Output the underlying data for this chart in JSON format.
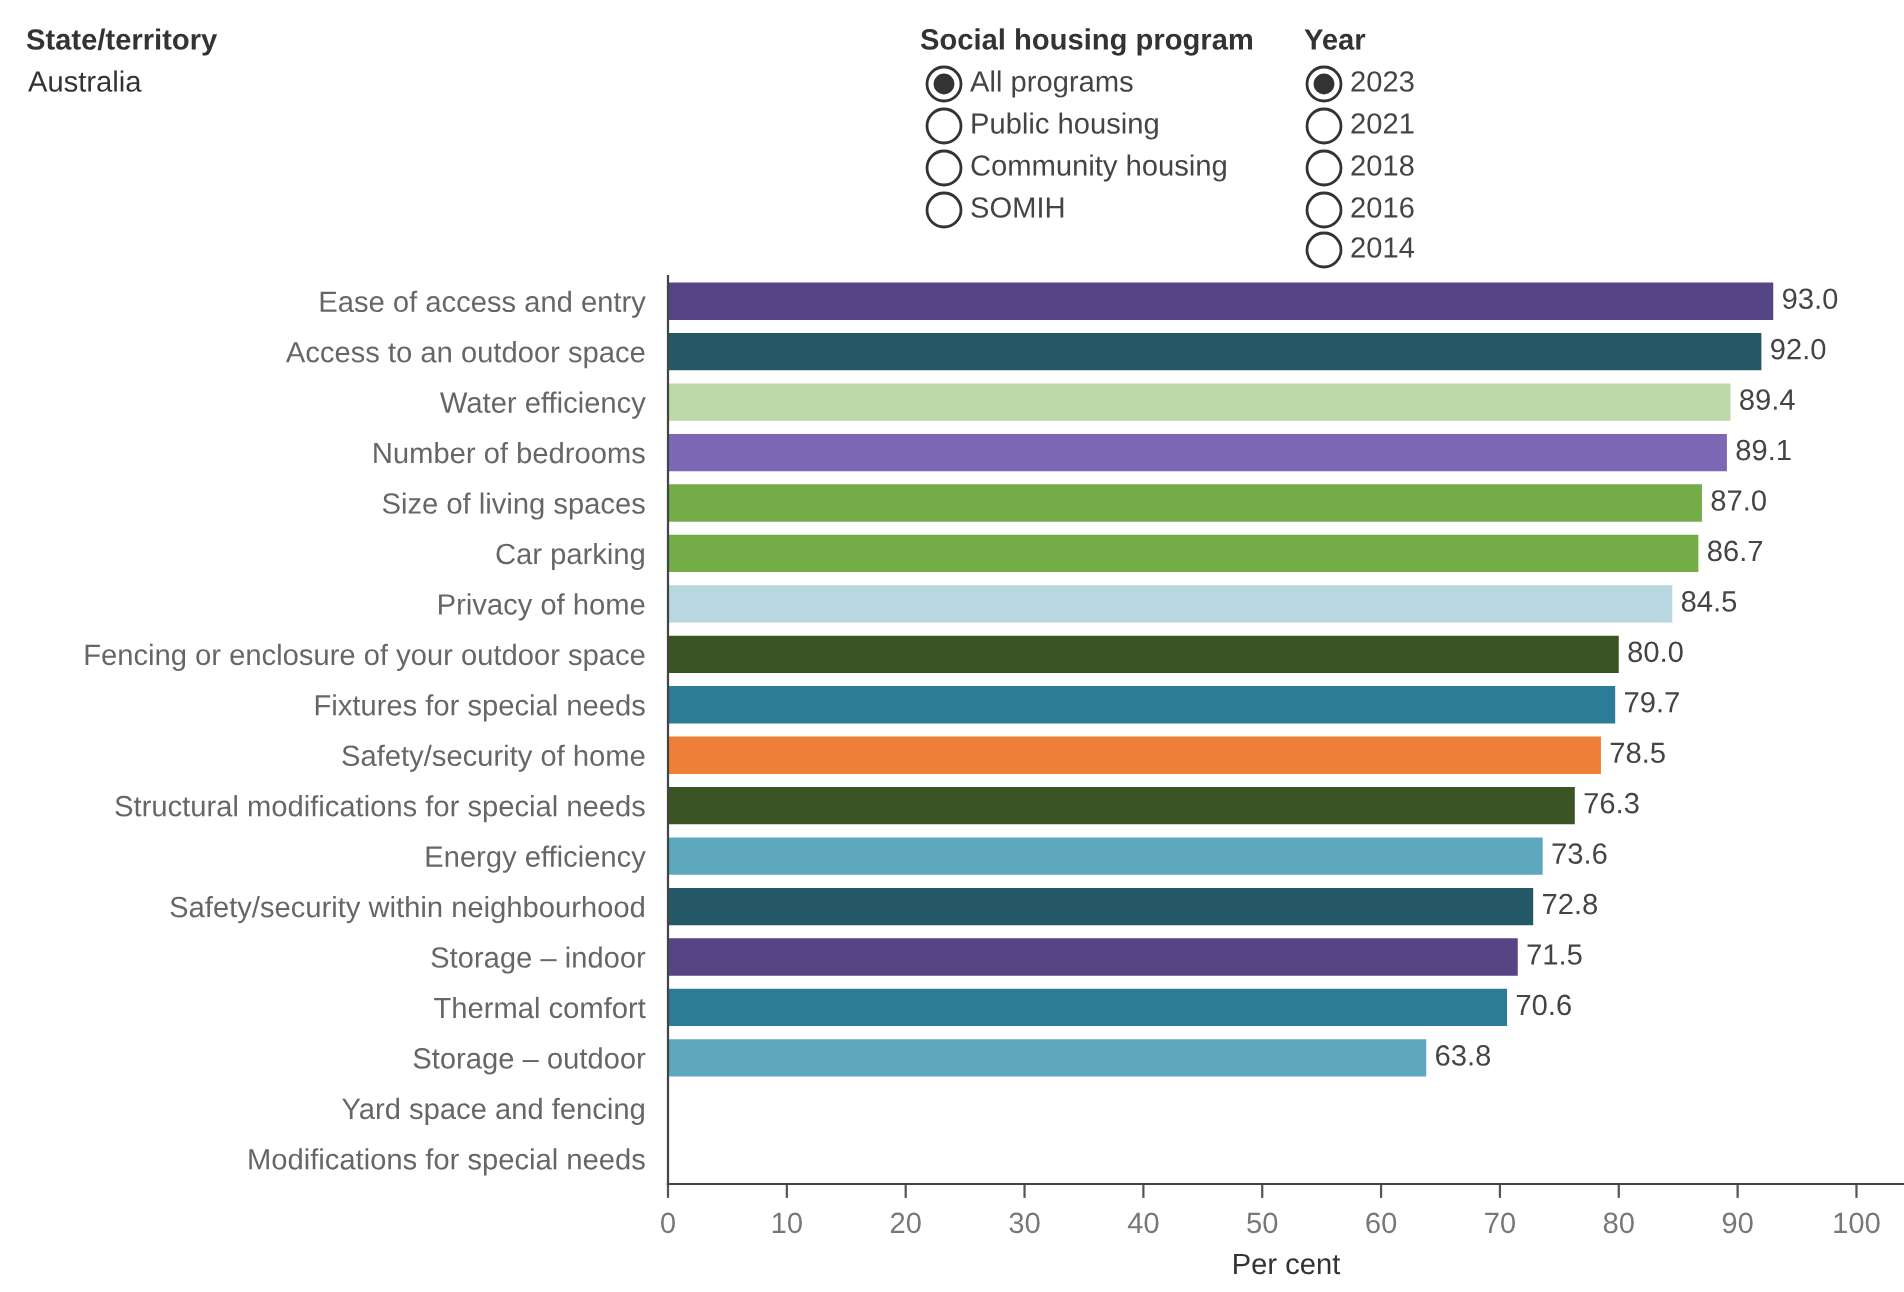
{
  "chart_data": {
    "type": "bar",
    "orientation": "horizontal",
    "xlabel": "Per cent",
    "categories": [
      "Ease of access and entry",
      "Access to an outdoor space",
      "Water efficiency",
      "Number of bedrooms",
      "Size of living spaces",
      "Car parking",
      "Privacy of home",
      "Fencing or enclosure of your outdoor space",
      "Fixtures for special needs",
      "Safety/security of home",
      "Structural modifications for special needs",
      "Energy efficiency",
      "Safety/security within neighbourhood",
      "Storage – indoor",
      "Thermal comfort",
      "Storage – outdoor",
      "Yard space and fencing",
      "Modifications for special needs"
    ],
    "values": [
      93.0,
      92.0,
      89.4,
      89.1,
      87.0,
      86.7,
      84.5,
      80.0,
      79.7,
      78.5,
      76.3,
      73.6,
      72.8,
      71.5,
      70.6,
      63.8,
      null,
      null
    ],
    "value_labels": [
      "93.0",
      "92.0",
      "89.4",
      "89.1",
      "87.0",
      "86.7",
      "84.5",
      "80.0",
      "79.7",
      "78.5",
      "76.3",
      "73.6",
      "72.8",
      "71.5",
      "70.6",
      "63.8",
      null,
      null
    ],
    "colors": [
      "#564584",
      "#255866",
      "#bcd9a8",
      "#7c68b4",
      "#74ac48",
      "#74ac48",
      "#b8d7e0",
      "#3a5424",
      "#2c7c98",
      "#f07f38",
      "#3a5424",
      "#5ea8be",
      "#255866",
      "#564584",
      "#2c7c98",
      "#5ea8be",
      "#5ea8be",
      "#5ea8be"
    ],
    "xlim": [
      0,
      104
    ],
    "xticks": [
      0,
      10,
      20,
      30,
      40,
      50,
      60,
      70,
      80,
      90,
      100
    ],
    "annotations": [
      "State/territory",
      "Australia",
      "Social housing program",
      "All programs",
      "Public housing",
      "Community housing",
      "SOMIH",
      "Year",
      "2023",
      "2021",
      "2018",
      "2016",
      "2014"
    ]
  }
}
